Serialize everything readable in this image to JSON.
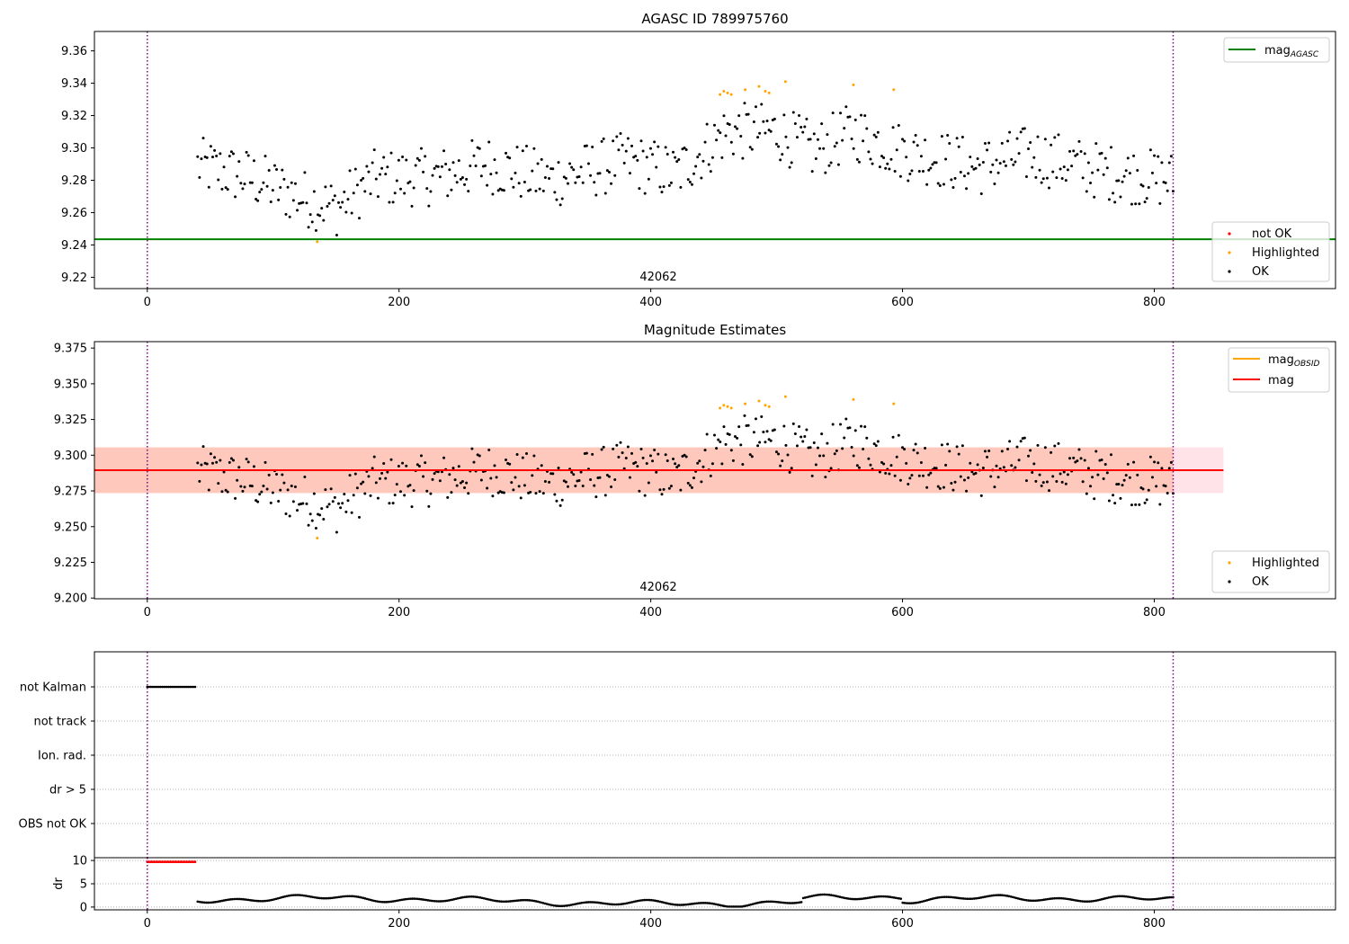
{
  "figure": {
    "page_title": "AGASC ID 789975760"
  },
  "chart_data": [
    {
      "id": "agasc",
      "type": "scatter",
      "title": "AGASC ID 789975760",
      "xlim": [
        -42,
        944
      ],
      "ylim": [
        9.213,
        9.372
      ],
      "xticks": [
        0,
        200,
        400,
        600,
        800
      ],
      "yticks": [
        9.22,
        9.24,
        9.26,
        9.28,
        9.3,
        9.32,
        9.34,
        9.36
      ],
      "annotation": "42062",
      "vlines": [
        0,
        815
      ],
      "hline": {
        "name": "mag_AGASC",
        "value": 9.2435,
        "color": "#008000"
      },
      "legend_top": [
        {
          "label": "mag",
          "sub": "AGASC",
          "kind": "line",
          "color": "#008000"
        }
      ],
      "legend_bottom": [
        {
          "label": "not OK",
          "kind": "dot",
          "color": "#ff0000"
        },
        {
          "label": "Highlighted",
          "kind": "dot",
          "color": "#ffa500"
        },
        {
          "label": "OK",
          "kind": "dot",
          "color": "#000000"
        }
      ],
      "series": [
        {
          "name": "OK",
          "color": "#000000",
          "x_start": 40,
          "x_end": 815,
          "n": 520
        }
      ],
      "highlighted": {
        "x": [
          135,
          455,
          458,
          461,
          464,
          475,
          486,
          491,
          494,
          507,
          561,
          593
        ],
        "y": [
          9.242,
          9.333,
          9.335,
          9.334,
          9.333,
          9.336,
          9.338,
          9.335,
          9.334,
          9.341,
          9.339,
          9.336
        ]
      }
    },
    {
      "id": "estimates",
      "type": "scatter",
      "title": "Magnitude Estimates",
      "xlim": [
        -42,
        944
      ],
      "ylim": [
        9.1995,
        9.3795
      ],
      "xticks": [
        0,
        200,
        400,
        600,
        800
      ],
      "yticks": [
        9.2,
        9.225,
        9.25,
        9.275,
        9.3,
        9.325,
        9.35,
        9.375
      ],
      "ytick_labels": [
        "9.200",
        "9.225",
        "9.250",
        "9.275",
        "9.300",
        "9.325",
        "9.350",
        "9.375"
      ],
      "annotation": "42062",
      "vlines": [
        0,
        815
      ],
      "mag": {
        "value": 9.2895,
        "band": [
          9.2735,
          9.3055
        ],
        "xrange": [
          -42,
          855
        ],
        "color": "#ff0000",
        "band_color": "#ffc0cb"
      },
      "mag_obsid": {
        "value": 9.2895,
        "band": [
          9.2735,
          9.3055
        ],
        "xrange": [
          -42,
          815
        ],
        "color": "#ffa500",
        "band_color": "#ffa07a"
      },
      "legend_top": [
        {
          "label": "mag",
          "sub": "OBSID",
          "kind": "line",
          "color": "#ffa500"
        },
        {
          "label": "mag",
          "kind": "line",
          "color": "#ff0000"
        }
      ],
      "legend_bottom": [
        {
          "label": "Highlighted",
          "kind": "dot",
          "color": "#ffa500"
        },
        {
          "label": "OK",
          "kind": "dot",
          "color": "#000000"
        }
      ]
    },
    {
      "id": "flags",
      "type": "scatter",
      "xlim": [
        -42,
        944
      ],
      "vlines": [
        0,
        815
      ],
      "categories": [
        "not Kalman",
        "not track",
        "Ion. rad.",
        "dr > 5",
        "OBS not OK"
      ],
      "not_kalman": {
        "x_start": 0,
        "x_end": 38,
        "n": 30
      }
    },
    {
      "id": "dr",
      "type": "scatter",
      "xlim": [
        -42,
        944
      ],
      "ylim": [
        -0.6,
        10.6
      ],
      "yticks": [
        0,
        5,
        10
      ],
      "ylabel": "dr",
      "xticks": [
        0,
        200,
        400,
        600,
        800
      ],
      "vlines": [
        0,
        815
      ],
      "red": {
        "x_start": 0,
        "x_end": 38,
        "n": 30,
        "value": 9.7
      },
      "black": {
        "x_start": 40,
        "x_end": 815,
        "n": 560
      }
    }
  ]
}
